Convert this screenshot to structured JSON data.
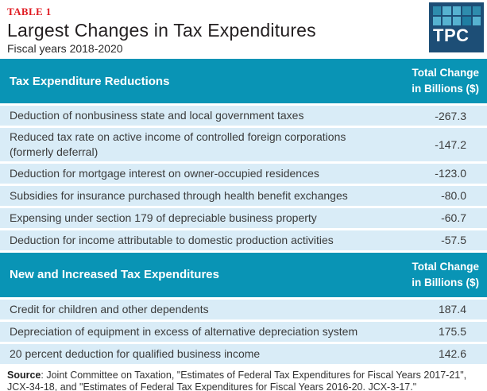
{
  "page": {
    "table_label": "TABLE 1",
    "title": "Largest Changes in Tax Expenditures",
    "subtitle": "Fiscal years 2018-2020"
  },
  "logo": {
    "text": "TPC",
    "bg_color": "#1d4e76",
    "square_colors": [
      "#2e8cad",
      "#56b2d0",
      "#56b2d0",
      "#2e8cad",
      "#2e8cad",
      "#56b2d0",
      "#56b2d0",
      "#56b2d0",
      "#1f7ea2",
      "#56b2d0"
    ]
  },
  "chart_data": {
    "type": "table",
    "title": "Largest Changes in Tax Expenditures",
    "subtitle": "Fiscal years 2018-2020",
    "value_header_line1": "Total Change",
    "value_header_line2": "in Billions ($)",
    "sections": [
      {
        "title": "Tax Expenditure Reductions",
        "rows": [
          {
            "label": "Deduction of nonbusiness state and local government taxes",
            "value": "-267.3"
          },
          {
            "label": "Reduced tax rate on active income of controlled foreign corporations (formerly deferral)",
            "value": "-147.2"
          },
          {
            "label": "Deduction for mortgage interest on owner-occupied residences",
            "value": "-123.0"
          },
          {
            "label": "Subsidies for insurance purchased through health benefit exchanges",
            "value": "-80.0"
          },
          {
            "label": "Expensing under section 179 of depreciable business property",
            "value": "-60.7"
          },
          {
            "label": "Deduction for income attributable to domestic production activities",
            "value": "-57.5"
          }
        ]
      },
      {
        "title": "New and Increased Tax Expenditures",
        "rows": [
          {
            "label": "Credit for children and other dependents",
            "value": "187.4"
          },
          {
            "label": "Depreciation of equipment in excess of alternative depreciation system",
            "value": "175.5"
          },
          {
            "label": "20 percent deduction for qualified business income",
            "value": "142.6"
          }
        ]
      }
    ]
  },
  "footer": {
    "source_label": "Source",
    "source_text": ": Joint Committee on Taxation, \"Estimates of Federal Tax Expenditures for Fiscal Years 2017-21\", JCX-34-18, and \"Estimates of Federal Tax Expenditures for Fiscal Years 2016-20. JCX-3-17.\""
  },
  "colors": {
    "section_header_bg": "#0994b5",
    "row_bg": "#d9ecf7",
    "table_label_red": "#e01a21",
    "title_text": "#231f20",
    "row_text": "#3b3b3b",
    "header_text": "#ffffff",
    "logo_navy": "#1d4e76"
  }
}
